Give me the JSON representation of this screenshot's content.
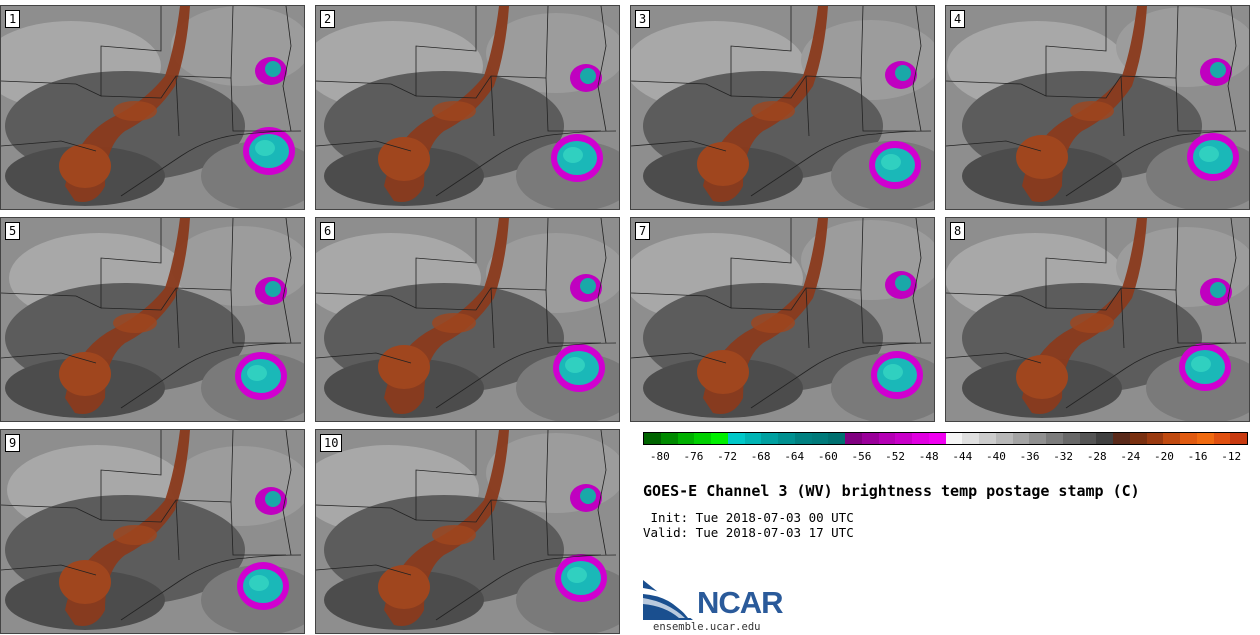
{
  "panels": [
    {
      "label": "1"
    },
    {
      "label": "2"
    },
    {
      "label": "3"
    },
    {
      "label": "4"
    },
    {
      "label": "5"
    },
    {
      "label": "6"
    },
    {
      "label": "7"
    },
    {
      "label": "8"
    },
    {
      "label": "9"
    },
    {
      "label": "10"
    }
  ],
  "colorbar": {
    "colors": [
      "#006400",
      "#008a00",
      "#00b000",
      "#00d000",
      "#00f000",
      "#00c8c8",
      "#00b4b4",
      "#00a0a0",
      "#009090",
      "#008080",
      "#007a7a",
      "#007070",
      "#800080",
      "#9a009a",
      "#b400b4",
      "#c800c8",
      "#e000e0",
      "#f000f0",
      "#f5f5f5",
      "#e0e0e0",
      "#cccccc",
      "#b8b8b8",
      "#a4a4a4",
      "#909090",
      "#7c7c7c",
      "#686868",
      "#545454",
      "#404040",
      "#5a2a1a",
      "#7a3010",
      "#9a3a10",
      "#c04a10",
      "#e05a10",
      "#f06a10",
      "#e05010",
      "#c83a10"
    ],
    "ticks": [
      "-80",
      "-76",
      "-72",
      "-68",
      "-64",
      "-60",
      "-56",
      "-52",
      "-48",
      "-44",
      "-40",
      "-36",
      "-32",
      "-28",
      "-24",
      "-20",
      "-16",
      "-12"
    ]
  },
  "title": "GOES-E Channel 3 (WV) brightness temp postage stamp (C)",
  "init_line": " Init: Tue 2018-07-03 00 UTC",
  "valid_line": "Valid: Tue 2018-07-03 17 UTC",
  "logo_text": "NCAR",
  "url": "ensemble.ucar.edu"
}
